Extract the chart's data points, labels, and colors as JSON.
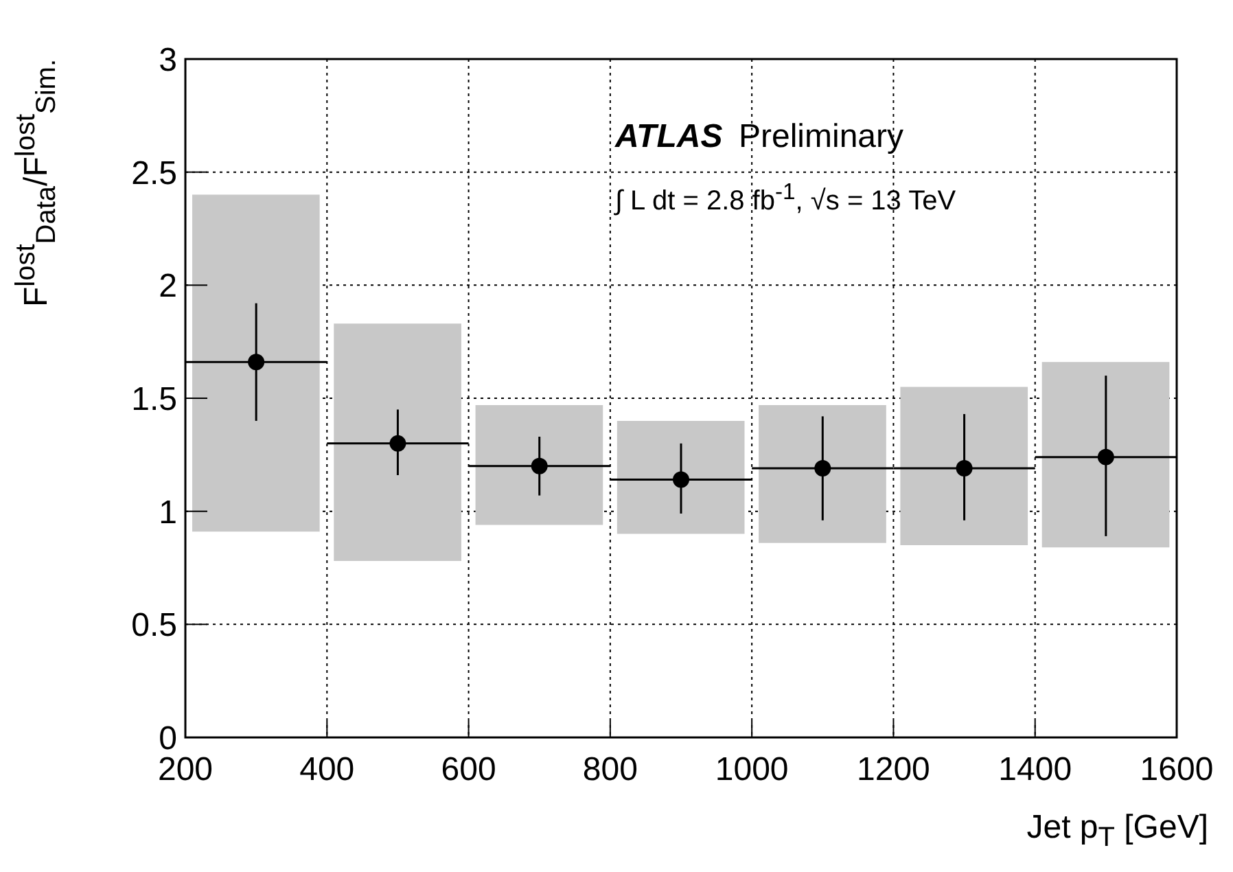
{
  "chart_data": {
    "type": "scatter",
    "xlabel": "Jet p$_{T}$ [GeV]",
    "ylabel": "F$^{lost}$$_{Data}$/F$^{lost}$$_{Sim.}$",
    "annotations": [
      "ATLAS",
      "Preliminary",
      "∫ L dt = 2.8 fb$^{-1}$, √s = 13 TeV"
    ],
    "xlim": [
      200,
      1600
    ],
    "xticks": [
      200,
      400,
      600,
      800,
      1000,
      1200,
      1400,
      1600
    ],
    "ylim": [
      0,
      3
    ],
    "yticks": [
      0,
      0.5,
      1,
      1.5,
      2,
      2.5,
      3
    ],
    "grid": true,
    "marker": "circle",
    "series": [
      {
        "type": "bar",
        "color": "#c8c8c8",
        "x": [
          300,
          500,
          700,
          900,
          1100,
          1300,
          1500
        ],
        "base": [
          0.91,
          0.78,
          0.94,
          0.9,
          0.86,
          0.85,
          0.84
        ],
        "values": [
          1.49,
          1.05,
          0.53,
          0.5,
          0.61,
          0.7,
          0.82
        ]
      },
      {
        "color": "#000000",
        "x": [
          300,
          500,
          700,
          900,
          1100,
          1300,
          1500
        ],
        "values": [
          1.66,
          1.3,
          1.2,
          1.14,
          1.19,
          1.19,
          1.24
        ],
        "errors": [
          [
            1.4,
            1.92
          ],
          [
            1.16,
            1.45
          ],
          [
            1.07,
            1.33
          ],
          [
            0.99,
            1.3
          ],
          [
            0.96,
            1.42
          ],
          [
            0.96,
            1.43
          ],
          [
            0.89,
            1.6
          ]
        ],
        "xerrors": [
          100,
          100,
          100,
          100,
          100,
          100,
          100
        ]
      }
    ]
  }
}
